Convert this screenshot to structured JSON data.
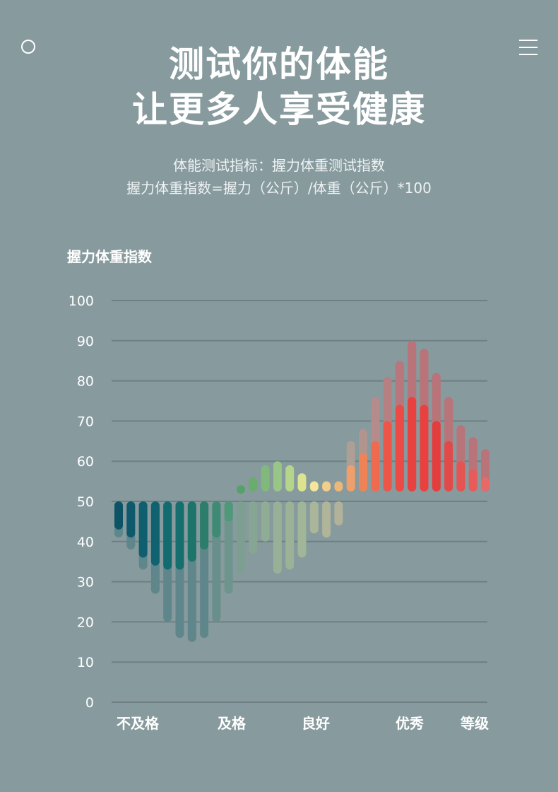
{
  "header": {
    "title_line1": "测试你的体能",
    "title_line2": "让更多人享受健康",
    "subtitle_line1": "体能测试指标：握力体重测试指数",
    "subtitle_line2": "握力体重指数=握力（公斤）/体重（公斤）*100",
    "left_icon": "circle-icon",
    "right_icon": "menu-icon"
  },
  "chart_data": {
    "type": "bar",
    "title": "",
    "ylabel": "握力体重指数",
    "xlabel": "等级",
    "ylim": [
      0,
      100
    ],
    "yticks": [
      0,
      10,
      20,
      30,
      40,
      50,
      60,
      70,
      80,
      90,
      100
    ],
    "baseline": 50,
    "grid": true,
    "x_category_labels": [
      "不及格",
      "及格",
      "良好",
      "优秀"
    ],
    "series": [
      {
        "values": [
          43,
          41,
          36,
          34,
          33,
          33,
          35,
          38,
          41,
          45,
          54,
          56,
          59,
          60,
          59,
          57,
          55,
          55,
          55,
          59,
          62,
          65,
          70,
          74,
          76,
          74,
          70,
          65,
          60,
          58,
          56
        ],
        "colors": [
          "#0c5366",
          "#0e5a6c",
          "#105f6f",
          "#116271",
          "#126c6f",
          "#156f6e",
          "#1c746b",
          "#2c7d6b",
          "#3f8a74",
          "#4f9878",
          "#57a168",
          "#6aab6e",
          "#80b97b",
          "#98c686",
          "#b6d48a",
          "#dde38f",
          "#f3e59c",
          "#f1ce8c",
          "#ecb878",
          "#ef9f6b",
          "#ef8358",
          "#ef6b4f",
          "#ee5549",
          "#ec4a44",
          "#e94040",
          "#e94040",
          "#e33d3d",
          "#e24a4a",
          "#e55352",
          "#e85b5b",
          "#e96868"
        ]
      },
      {
        "values": [
          41,
          38,
          33,
          27,
          20,
          16,
          15,
          16,
          20,
          27,
          32,
          37,
          40,
          32,
          33,
          36,
          42,
          41,
          44,
          65,
          68,
          76,
          81,
          85,
          90,
          88,
          82,
          76,
          69,
          66,
          63
        ],
        "colors": [
          "#5f878b",
          "#5f878b",
          "#5f878b",
          "#5f878b",
          "#5f878b",
          "#5f878b",
          "#5f878b",
          "#5f878b",
          "#688f8b",
          "#6e958d",
          "#7c9f91",
          "#86a693",
          "#8fac95",
          "#97b096",
          "#9bb297",
          "#a1b598",
          "#a9b69a",
          "#b0b59a",
          "#b2b29a",
          "#ae9f94",
          "#b1948e",
          "#b58b8b",
          "#b67f82",
          "#b7777c",
          "#b87479",
          "#b87479",
          "#b87479",
          "#b87479",
          "#b87479",
          "#b87479",
          "#b87479"
        ]
      }
    ]
  }
}
